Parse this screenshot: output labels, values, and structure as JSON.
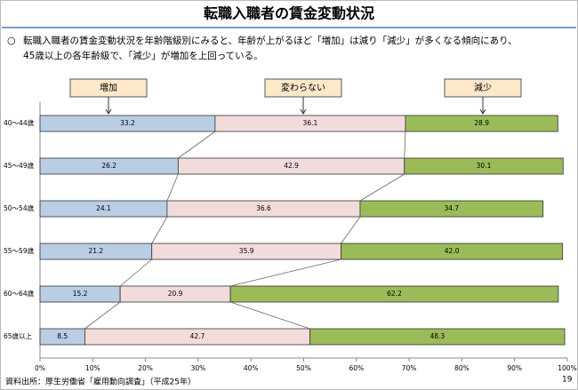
{
  "chart_data": {
    "type": "stacked-bar-horizontal",
    "title": "転職入職者の賃金変動状況",
    "bullet": "○",
    "note": [
      "転職入職者の賃金変動状況を年齢階級別にみると、年齢が上がるほど「増加」は減り「減少」が多くなる傾向にあり、",
      "45歳以上の各年齢級で、「減少」が増加を上回っている。"
    ],
    "categories": [
      "40～44歳",
      "45～49歳",
      "50～54歳",
      "55～59歳",
      "60～64歳",
      "65歳以上"
    ],
    "series": [
      {
        "name": "増加",
        "color": "#b9cde5",
        "values": [
          33.2,
          26.2,
          24.1,
          21.2,
          15.2,
          8.5
        ],
        "value_labels": [
          "33.2",
          "26.2",
          "24.1",
          "21.2",
          "15.2",
          "8.5"
        ]
      },
      {
        "name": "変わらない",
        "color": "#f2dcdb",
        "values": [
          36.1,
          42.9,
          36.6,
          35.9,
          20.9,
          42.7
        ],
        "value_labels": [
          "36.1",
          "42.9",
          "36.6",
          "35.9",
          "20.9",
          "42.7"
        ]
      },
      {
        "name": "減少",
        "color": "#9bbb59",
        "values": [
          28.9,
          30.1,
          34.7,
          42.0,
          62.2,
          48.3
        ],
        "value_labels": [
          "28.9",
          "30.1",
          "34.7",
          "42.0",
          "62.2",
          "48.3"
        ]
      }
    ],
    "xlim": [
      0,
      100
    ],
    "xticks": [
      {
        "value": 0,
        "label": "0%"
      },
      {
        "value": 10,
        "label": "10%"
      },
      {
        "value": 20,
        "label": "20%"
      },
      {
        "value": 30,
        "label": "30%"
      },
      {
        "value": 40,
        "label": "40%"
      },
      {
        "value": 50,
        "label": "50%"
      },
      {
        "value": 60,
        "label": "60%"
      },
      {
        "value": 70,
        "label": "70%"
      },
      {
        "value": 80,
        "label": "80%"
      },
      {
        "value": 90,
        "label": "90%"
      },
      {
        "value": 100,
        "label": "100%"
      }
    ],
    "source": "資料出所：厚生労働省「雇用動向調査」（平成25年）",
    "page_number": "19"
  }
}
